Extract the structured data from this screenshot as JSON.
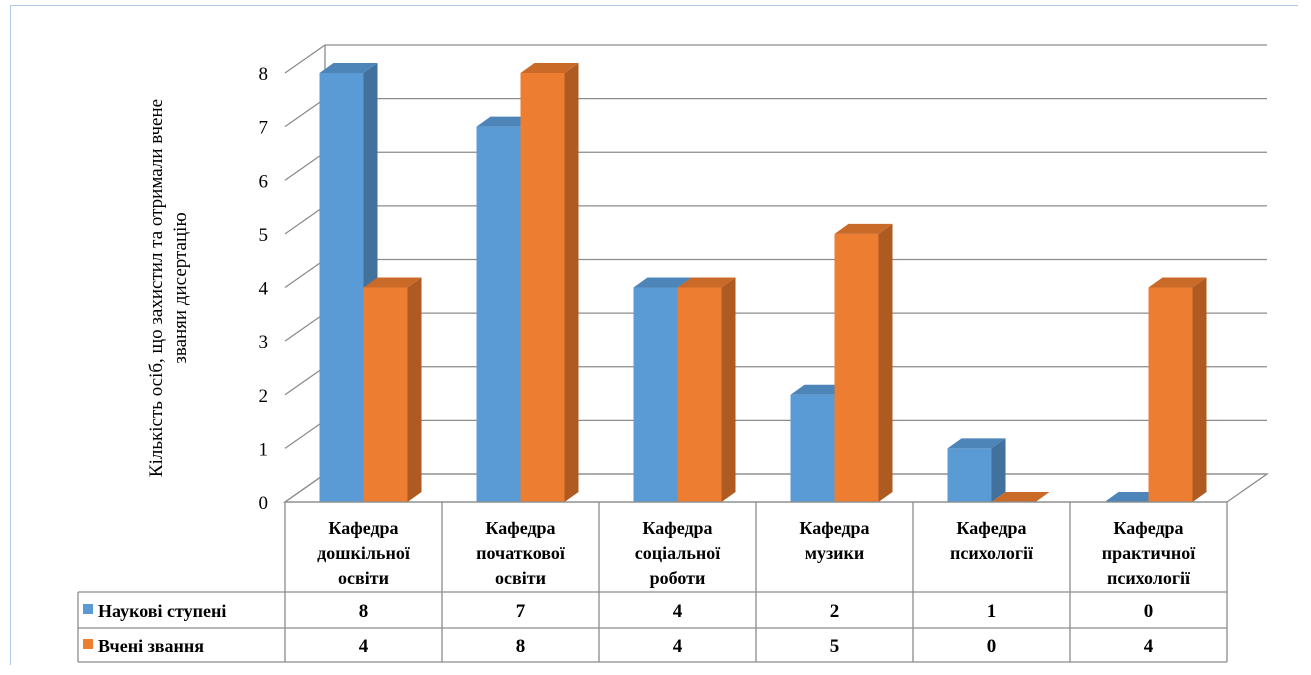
{
  "chart_data": {
    "type": "bar",
    "categories": [
      [
        "Кафедра",
        "дошкільної",
        "освіти"
      ],
      [
        "Кафедра",
        "початкової",
        "освіти"
      ],
      [
        "Кафедра",
        "соціальної",
        "роботи"
      ],
      [
        "Кафедра",
        "музики"
      ],
      [
        "Кафедра",
        "психології"
      ],
      [
        "Кафедра",
        "практичної",
        "психології"
      ]
    ],
    "series": [
      {
        "name": "Наукові ступені",
        "values": [
          8,
          7,
          4,
          2,
          1,
          0
        ],
        "color": "#5b9bd5",
        "side": "#41719c",
        "top": "#4d85b8"
      },
      {
        "name": "Вчені звання",
        "values": [
          4,
          8,
          4,
          5,
          0,
          4
        ],
        "color": "#ed7d31",
        "side": "#ae5a21",
        "top": "#c96a29"
      }
    ],
    "ylabel": [
      "Кількість осіб, що захистил та отримали вчене",
      "званяи дисертацію"
    ],
    "ylim": [
      0,
      8
    ],
    "yticks": [
      "0",
      "1",
      "2",
      "3",
      "4",
      "5",
      "6",
      "7",
      "8"
    ],
    "grid": true,
    "legend": "data-table",
    "style": "3d-clustered-column"
  }
}
